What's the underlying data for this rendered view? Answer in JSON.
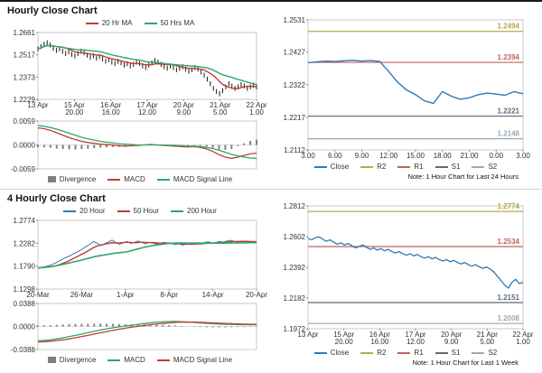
{
  "sections": {
    "hourly_title": "Hourly Close Chart",
    "four_hourly_title": "4 Hourly Close Chart",
    "hourly_note": "Note: 1 Hour Chart for Last 24 Hours",
    "weekly_note": "Note: 1 Hour Chart for Last 1 Week"
  },
  "colors": {
    "close_blue": "#2f7ab8",
    "ma_red": "#c23b33",
    "ma_green": "#2fa66a",
    "candle_black": "#1a1a1a",
    "divergence_gray": "#7f7f7f",
    "r2_olive": "#b5a84b",
    "r1_red": "#c0625c",
    "s1_dark": "#5a6b7b",
    "s2_gray": "#9aa8b5"
  },
  "chart_data": [
    {
      "id": "hourly-close",
      "type": "line",
      "style": "candlestick-with-ma",
      "title": "Hourly Close Chart",
      "ylim": [
        1.2229,
        1.2661
      ],
      "yticks": [
        "1.2661",
        "1.2517",
        "1.2373",
        "1.2229"
      ],
      "xticks": [
        [
          "13 Apr",
          ""
        ],
        [
          "15 Apr",
          "20.00"
        ],
        [
          "16 Apr",
          "16.00"
        ],
        [
          "17 Apr",
          "12.00"
        ],
        [
          "20 Apr",
          "9.00"
        ],
        [
          "21 Apr",
          "5.00"
        ],
        [
          "22 Apr",
          "1.00"
        ]
      ],
      "legend": [
        {
          "label": "20 Hr MA",
          "color": "#c23b33",
          "swatch": "line"
        },
        {
          "label": "50 Hrs MA",
          "color": "#2fa66a",
          "swatch": "line"
        }
      ],
      "series": [
        {
          "name": "close-candles",
          "type": "candle",
          "color": "#1a1a1a",
          "amp": 0.0016,
          "data": [
            1.2555,
            1.257,
            1.2585,
            1.2595,
            1.258,
            1.256,
            1.2545,
            1.2555,
            1.254,
            1.2525,
            1.2535,
            1.252,
            1.251,
            1.2525,
            1.254,
            1.253,
            1.2515,
            1.25,
            1.251,
            1.2495,
            1.2505,
            1.249,
            1.2475,
            1.2485,
            1.247,
            1.246,
            1.2475,
            1.2465,
            1.245,
            1.246,
            1.2445,
            1.2455,
            1.247,
            1.246,
            1.2445,
            1.2435,
            1.245,
            1.2465,
            1.248,
            1.247,
            1.2455,
            1.244,
            1.243,
            1.2445,
            1.2435,
            1.242,
            1.243,
            1.244,
            1.2425,
            1.241,
            1.242,
            1.2435,
            1.2425,
            1.2405,
            1.2385,
            1.236,
            1.233,
            1.23,
            1.228,
            1.2265,
            1.2285,
            1.231,
            1.233,
            1.2315,
            1.23,
            1.231,
            1.2325,
            1.2315,
            1.23,
            1.231,
            1.232,
            1.231
          ]
        },
        {
          "name": "20-hr-ma",
          "type": "sma",
          "ref": 0,
          "window": 8,
          "color": "#c23b33",
          "widthPx": 1.4
        },
        {
          "name": "50-hrs-ma",
          "type": "sma",
          "ref": 0,
          "window": 20,
          "color": "#2fa66a",
          "widthPx": 1.4
        }
      ]
    },
    {
      "id": "hourly-macd",
      "type": "bar",
      "ylim": [
        -0.0059,
        0.0059
      ],
      "yticks": [
        "0.0059",
        "0.0000",
        "-0.0059"
      ],
      "zeroline": true,
      "legend": [
        {
          "label": "Divergence",
          "color": "#7f7f7f",
          "swatch": "box"
        },
        {
          "label": "MACD",
          "color": "#c23b33",
          "swatch": "line"
        },
        {
          "label": "MACD Signal Line",
          "color": "#2fa66a",
          "swatch": "line"
        }
      ],
      "series": [
        {
          "name": "divergence",
          "type": "bars",
          "color": "#7f7f7f",
          "data": [
            -0.0006,
            -0.0006,
            -0.0007,
            -0.0009,
            -0.001,
            -0.0011,
            -0.0011,
            -0.001,
            -0.0009,
            -0.0008,
            -0.0007,
            -0.0006,
            -0.0005,
            -0.0005,
            -0.0005,
            -0.0003,
            -0.0001,
            0.0,
            0.0001,
            0.0,
            -0.0001,
            -0.0001,
            -0.0002,
            -0.0002,
            -0.0002,
            -0.0001,
            -0.0002,
            -0.0004,
            -0.0007,
            -0.0011,
            -0.0012,
            -0.001,
            -0.0003,
            0.0004,
            0.001,
            0.0013
          ]
        },
        {
          "name": "macd",
          "type": "line",
          "color": "#c23b33",
          "widthPx": 1.3,
          "data": [
            0.0042,
            0.004,
            0.0036,
            0.003,
            0.0024,
            0.0018,
            0.0013,
            0.0009,
            0.0006,
            0.0004,
            0.0002,
            0.0001,
            0.0,
            -0.0002,
            -0.0003,
            -0.0002,
            -0.0001,
            0.0,
            0.0001,
            0.0,
            -0.0001,
            -0.0002,
            -0.0003,
            -0.0004,
            -0.0005,
            -0.0004,
            -0.0006,
            -0.001,
            -0.0016,
            -0.0024,
            -0.003,
            -0.0033,
            -0.003,
            -0.0026,
            -0.0022,
            -0.002
          ]
        },
        {
          "name": "macd-signal",
          "type": "line",
          "color": "#2fa66a",
          "widthPx": 1.3,
          "data": [
            0.0048,
            0.0046,
            0.0043,
            0.0039,
            0.0034,
            0.0029,
            0.0024,
            0.0019,
            0.0015,
            0.0012,
            0.0009,
            0.0007,
            0.0005,
            0.0003,
            0.0002,
            0.0001,
            0.0,
            0.0,
            0.0,
            0.0,
            0.0,
            -0.0001,
            -0.0001,
            -0.0002,
            -0.0003,
            -0.0003,
            -0.0004,
            -0.0006,
            -0.0009,
            -0.0013,
            -0.0018,
            -0.0023,
            -0.0027,
            -0.003,
            -0.0032,
            -0.0033
          ]
        }
      ]
    },
    {
      "id": "hourly-pivot",
      "type": "line",
      "ylim": [
        1.2112,
        1.2531
      ],
      "yticks": [
        "1.2531",
        "1.2427",
        "1.2322",
        "1.2217",
        "1.2112"
      ],
      "xticks": [
        "3.00",
        "6.00",
        "9.00",
        "12.00",
        "15.00",
        "18.00",
        "21.00",
        "0.00",
        "3.00"
      ],
      "note": "Note: 1 Hour Chart for Last 24 Hours",
      "hlines": [
        {
          "name": "R2",
          "label": "1.2494",
          "color": "#b5a84b"
        },
        {
          "name": "R1",
          "label": "1.2394",
          "color": "#c0625c"
        },
        {
          "name": "S1",
          "label": "1.2221",
          "color": "#5a6b7b"
        },
        {
          "name": "S2",
          "label": "1.2148",
          "color": "#9aa8b5"
        }
      ],
      "legend": [
        {
          "label": "Close",
          "color": "#2f7ab8",
          "swatch": "line"
        },
        {
          "label": "R2",
          "color": "#b5a84b",
          "swatch": "line"
        },
        {
          "label": "R1",
          "color": "#c0625c",
          "swatch": "line"
        },
        {
          "label": "S1",
          "color": "#5a6b7b",
          "swatch": "line"
        },
        {
          "label": "S2",
          "color": "#9aa8b5",
          "swatch": "line"
        }
      ],
      "series": [
        {
          "name": "close",
          "type": "line",
          "color": "#2f7ab8",
          "widthPx": 1.4,
          "data": [
            1.2393,
            1.2396,
            1.2398,
            1.2397,
            1.2399,
            1.2401,
            1.2398,
            1.24,
            1.2397,
            1.2365,
            1.233,
            1.2305,
            1.229,
            1.227,
            1.2262,
            1.23,
            1.2285,
            1.2275,
            1.228,
            1.229,
            1.2295,
            1.2292,
            1.2288,
            1.23,
            1.2293
          ]
        }
      ]
    },
    {
      "id": "four-hourly-close",
      "type": "line",
      "title": "4 Hourly Close Chart",
      "ylim": [
        1.1298,
        1.2774
      ],
      "yticks": [
        "1.2774",
        "1.2282",
        "1.1790",
        "1.1298"
      ],
      "xticks": [
        "20-Mar",
        "26-Mar",
        "1-Apr",
        "8-Apr",
        "14-Apr",
        "20-Apr"
      ],
      "legend": [
        {
          "label": "20 Hour",
          "color": "#2f7ab8",
          "swatch": "line"
        },
        {
          "label": "50 Hour",
          "color": "#c23b33",
          "swatch": "line"
        },
        {
          "label": "200 Hour",
          "color": "#2fa66a",
          "swatch": "line"
        }
      ],
      "series": [
        {
          "name": "20-hour",
          "type": "line",
          "color": "#2f7ab8",
          "widthPx": 1,
          "data": [
            1.175,
            1.1765,
            1.178,
            1.18,
            1.183,
            1.187,
            1.191,
            1.1955,
            1.199,
            1.203,
            1.207,
            1.211,
            1.216,
            1.221,
            1.226,
            1.232,
            1.228,
            1.223,
            1.227,
            1.231,
            1.235,
            1.23,
            1.226,
            1.229,
            1.232,
            1.228,
            1.23,
            1.233,
            1.23,
            1.227,
            1.23,
            1.2285,
            1.2265,
            1.228,
            1.23,
            1.2285,
            1.2275,
            1.2255,
            1.227,
            1.2245,
            1.226,
            1.228,
            1.2265,
            1.229,
            1.2275,
            1.23,
            1.231,
            1.2285,
            1.2295,
            1.232,
            1.2305,
            1.233,
            1.2345,
            1.232,
            1.2305,
            1.233,
            1.2315,
            1.2305,
            1.232,
            1.2315
          ]
        },
        {
          "name": "50-hour",
          "type": "sma",
          "ref": 0,
          "window": 6,
          "color": "#c23b33",
          "widthPx": 1.4
        },
        {
          "name": "200-hour",
          "type": "sma",
          "ref": 0,
          "window": 25,
          "color": "#2fa66a",
          "widthPx": 1.6
        }
      ]
    },
    {
      "id": "four-hourly-macd",
      "type": "bar",
      "ylim": [
        -0.0388,
        0.0388
      ],
      "yticks": [
        "0.0388",
        "0.0000",
        "-0.0388"
      ],
      "zeroline": true,
      "legend": [
        {
          "label": "Divergence",
          "color": "#7f7f7f",
          "swatch": "box"
        },
        {
          "label": "MACD",
          "color": "#2fa66a",
          "swatch": "line"
        },
        {
          "label": "MACD Signal Line",
          "color": "#c23b33",
          "swatch": "line"
        }
      ],
      "series": [
        {
          "name": "divergence",
          "type": "bars",
          "color": "#7f7f7f",
          "data": [
            0.002,
            0.0021,
            0.0023,
            0.0028,
            0.0034,
            0.0038,
            0.004,
            0.0042,
            0.0045,
            0.0046,
            0.0046,
            0.0045,
            0.0043,
            0.004,
            0.0036,
            0.0034,
            0.0034,
            0.0034,
            0.0032,
            0.003,
            0.0028,
            0.0023,
            0.0017,
            0.001,
            0.0002,
            -0.0005,
            -0.001,
            -0.0014,
            -0.0015,
            -0.0016,
            -0.0015,
            -0.0013,
            -0.0011,
            -0.001,
            -0.0007,
            -0.0007
          ]
        },
        {
          "name": "macd",
          "type": "line",
          "color": "#2fa66a",
          "widthPx": 1.3,
          "data": [
            -0.024,
            -0.0235,
            -0.0225,
            -0.021,
            -0.019,
            -0.017,
            -0.015,
            -0.0128,
            -0.0105,
            -0.0082,
            -0.006,
            -0.004,
            -0.0022,
            -0.0006,
            0.0008,
            0.0022,
            0.0036,
            0.005,
            0.0062,
            0.0072,
            0.008,
            0.0084,
            0.0085,
            0.0082,
            0.0076,
            0.0068,
            0.006,
            0.0052,
            0.0046,
            0.004,
            0.0036,
            0.0034,
            0.0032,
            0.003,
            0.003,
            0.0028
          ]
        },
        {
          "name": "macd-signal",
          "type": "line",
          "color": "#c23b33",
          "widthPx": 1.3,
          "data": [
            -0.026,
            -0.0256,
            -0.0248,
            -0.0238,
            -0.0224,
            -0.0208,
            -0.019,
            -0.017,
            -0.015,
            -0.0128,
            -0.0106,
            -0.0085,
            -0.0065,
            -0.0046,
            -0.0028,
            -0.0012,
            0.0002,
            0.0016,
            0.003,
            0.0042,
            0.0052,
            0.0061,
            0.0068,
            0.0072,
            0.0074,
            0.0073,
            0.007,
            0.0066,
            0.0061,
            0.0056,
            0.0051,
            0.0047,
            0.0043,
            0.004,
            0.0037,
            0.0035
          ]
        }
      ]
    },
    {
      "id": "weekly-pivot",
      "type": "line",
      "ylim": [
        1.1972,
        1.2812
      ],
      "yticks": [
        "1.2812",
        "1.2602",
        "1.2392",
        "1.2182",
        "1.1972"
      ],
      "xticks": [
        [
          "13 Apr",
          ""
        ],
        [
          "15 Apr",
          "20.00"
        ],
        [
          "16 Apr",
          "16.00"
        ],
        [
          "17 Apr",
          "12.00"
        ],
        [
          "20 Apr",
          "9.00"
        ],
        [
          "21 Apr",
          "5.00"
        ],
        [
          "22 Apr",
          "1.00"
        ]
      ],
      "note": "Note: 1 Hour Chart for Last 1 Week",
      "hlines": [
        {
          "name": "R2",
          "label": "1.2774",
          "color": "#b5a84b"
        },
        {
          "name": "R1",
          "label": "1.2534",
          "color": "#c0625c"
        },
        {
          "name": "S1",
          "label": "1.2151",
          "color": "#5a6b7b"
        },
        {
          "name": "S2",
          "label": "1.2008",
          "color": "#9aa8b5"
        }
      ],
      "legend": [
        {
          "label": "Close",
          "color": "#2f7ab8",
          "swatch": "line"
        },
        {
          "label": "R2",
          "color": "#b5a84b",
          "swatch": "line"
        },
        {
          "label": "R1",
          "color": "#c0625c",
          "swatch": "line"
        },
        {
          "label": "S1",
          "color": "#5a6b7b",
          "swatch": "line"
        },
        {
          "label": "S2",
          "color": "#9aa8b5",
          "swatch": "line"
        }
      ],
      "series": [
        {
          "name": "close",
          "type": "line",
          "color": "#2f7ab8",
          "widthPx": 1.3,
          "data": [
            1.259,
            1.258,
            1.2595,
            1.26,
            1.2585,
            1.257,
            1.258,
            1.2565,
            1.255,
            1.256,
            1.2545,
            1.2555,
            1.254,
            1.2525,
            1.2535,
            1.2545,
            1.253,
            1.2515,
            1.2525,
            1.251,
            1.252,
            1.2505,
            1.2515,
            1.25,
            1.249,
            1.25,
            1.2485,
            1.2475,
            1.2485,
            1.247,
            1.248,
            1.2465,
            1.2455,
            1.2465,
            1.245,
            1.246,
            1.2445,
            1.2435,
            1.2445,
            1.243,
            1.244,
            1.2425,
            1.2415,
            1.2425,
            1.241,
            1.24,
            1.241,
            1.2395,
            1.2385,
            1.2395,
            1.238,
            1.236,
            1.233,
            1.23,
            1.227,
            1.225,
            1.229,
            1.231,
            1.228,
            1.229
          ]
        }
      ]
    }
  ]
}
